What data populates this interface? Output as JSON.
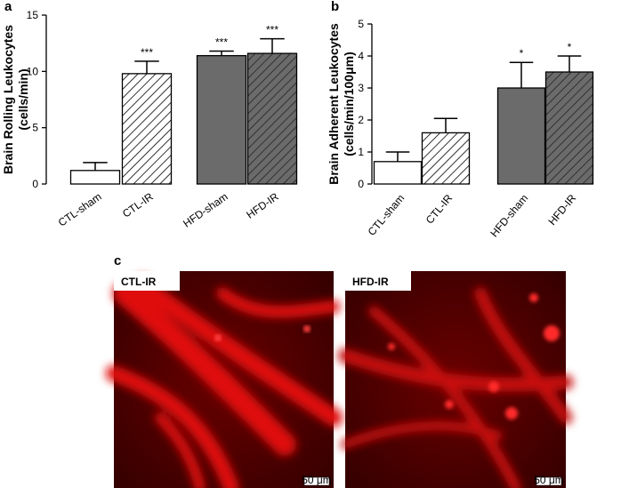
{
  "chart_data": [
    {
      "type": "bar",
      "panel_label": "a",
      "ylabel": [
        "Brain Rolling Leukocytes",
        "(cells/min)"
      ],
      "categories": [
        "CTL-sham",
        "CTL-IR",
        "HFD-sham",
        "HFD-IR"
      ],
      "values": [
        1.2,
        9.8,
        11.4,
        11.6
      ],
      "errors": [
        0.7,
        1.1,
        0.4,
        1.3
      ],
      "significance": [
        null,
        "***",
        "***",
        "***"
      ],
      "fills": [
        "#ffffff",
        "#ffffff",
        "#6b6b6b",
        "#6b6b6b"
      ],
      "hatch": [
        false,
        true,
        false,
        true
      ],
      "ylim": [
        0,
        15
      ],
      "yticks": [
        0,
        5,
        10,
        15
      ]
    },
    {
      "type": "bar",
      "panel_label": "b",
      "ylabel": [
        "Brain Adherent Leukocytes",
        "(cells/min/100μm)"
      ],
      "categories": [
        "CTL-sham",
        "CTL-IR",
        "HFD-sham",
        "HFD-IR"
      ],
      "values": [
        0.7,
        1.6,
        3.0,
        3.5
      ],
      "errors": [
        0.3,
        0.45,
        0.8,
        0.5
      ],
      "significance": [
        null,
        null,
        "*",
        "*"
      ],
      "fills": [
        "#ffffff",
        "#ffffff",
        "#6b6b6b",
        "#6b6b6b"
      ],
      "hatch": [
        false,
        true,
        false,
        true
      ],
      "ylim": [
        0,
        5
      ],
      "yticks": [
        0,
        1,
        2,
        3,
        4,
        5
      ]
    }
  ],
  "panel_c": {
    "label": "c",
    "images": [
      {
        "label": "CTL-IR",
        "scale_bar": "50 μm"
      },
      {
        "label": "HFD-IR",
        "scale_bar": "50 μm"
      }
    ]
  }
}
